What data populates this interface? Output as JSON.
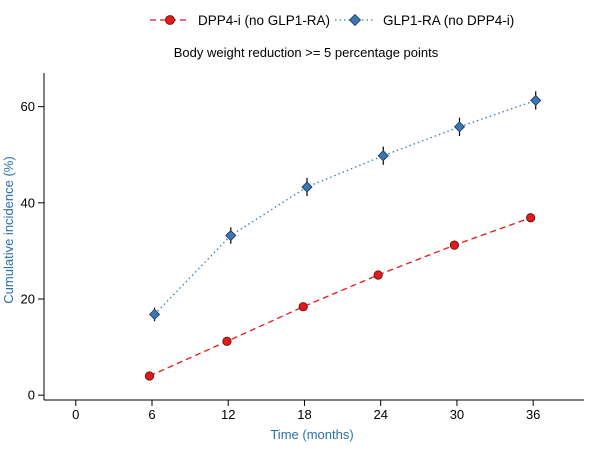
{
  "chart_data": {
    "type": "line",
    "title": "Body weight reduction >= 5 percentage points",
    "xlabel": "Time (months)",
    "ylabel": "Cumulative incidence (%)",
    "xlim": [
      -2.5,
      40
    ],
    "ylim": [
      -1,
      67
    ],
    "x_ticks": [
      0,
      6,
      12,
      18,
      24,
      30,
      36
    ],
    "x_tick_labels": [
      "0",
      "6",
      "12",
      "18",
      "24",
      "30",
      "36"
    ],
    "y_ticks": [
      0,
      20,
      40,
      60
    ],
    "y_tick_labels": [
      "0",
      "20",
      "40",
      "60"
    ],
    "grid": false,
    "legend_position": "top",
    "series": [
      {
        "name": "DPP4-i (no GLP1-RA)",
        "color": "#e31a1c",
        "marker": "circle",
        "line_style": "dashed",
        "x": [
          5.8,
          11.9,
          17.9,
          23.8,
          29.8,
          35.8
        ],
        "y": [
          4.0,
          11.2,
          18.4,
          25.0,
          31.2,
          36.9
        ],
        "ci_low": [
          3.7,
          10.8,
          17.9,
          24.4,
          30.4,
          36.0
        ],
        "ci_high": [
          4.3,
          11.6,
          18.9,
          25.6,
          32.0,
          37.8
        ]
      },
      {
        "name": "GLP1-RA (no DPP4-i)",
        "color": "#3a78b5",
        "marker": "diamond",
        "line_style": "dotted",
        "x": [
          6.2,
          12.2,
          18.2,
          24.2,
          30.2,
          36.2
        ],
        "y": [
          16.8,
          33.2,
          43.3,
          49.8,
          55.8,
          61.3
        ],
        "ci_low": [
          15.4,
          31.5,
          41.4,
          47.9,
          53.9,
          59.4
        ],
        "ci_high": [
          18.2,
          34.9,
          45.2,
          51.7,
          57.7,
          63.2
        ]
      }
    ]
  }
}
